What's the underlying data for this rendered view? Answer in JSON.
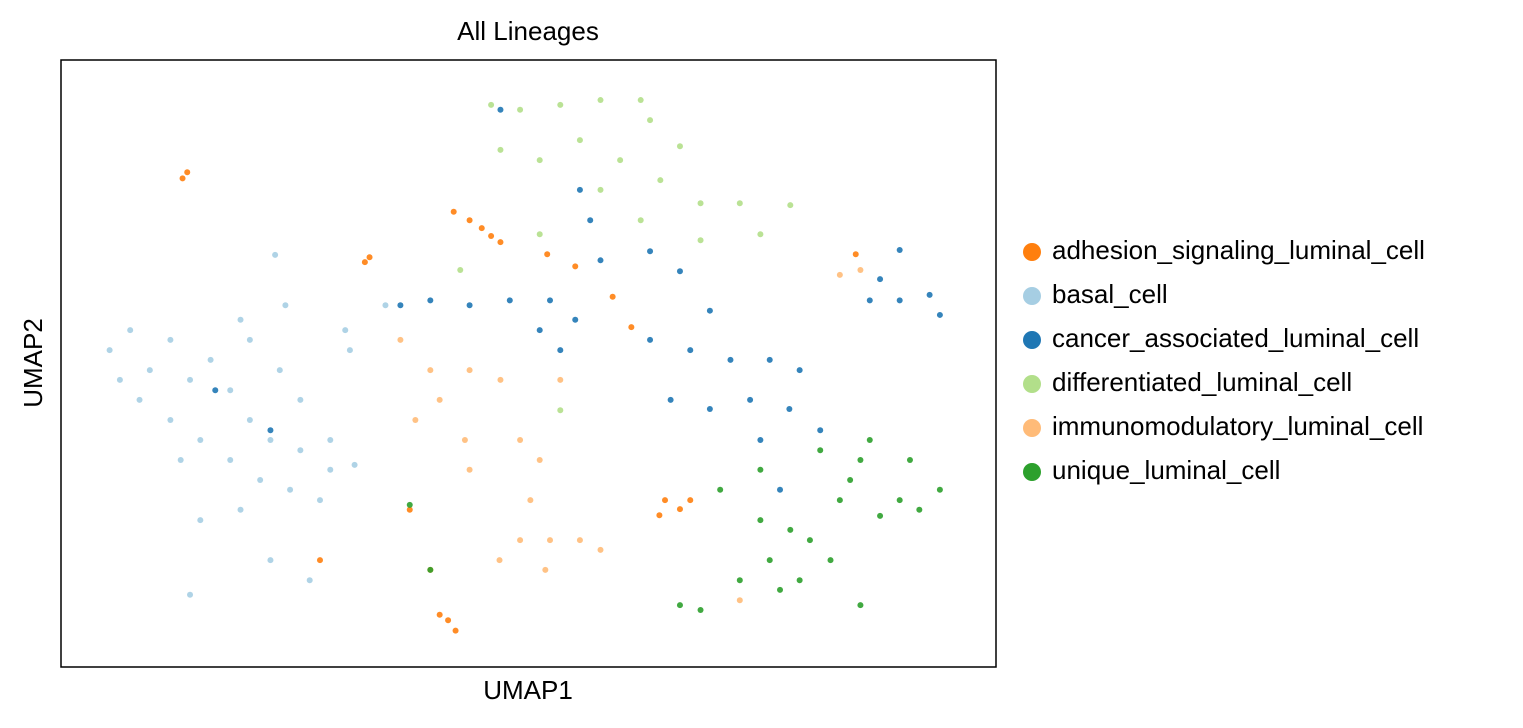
{
  "chart_data": {
    "type": "scatter",
    "title": "All Lineages",
    "xlabel": "UMAP1",
    "ylabel": "UMAP2",
    "xlim": [
      0,
      100
    ],
    "ylim": [
      0,
      100
    ],
    "legend": "right",
    "series": [
      {
        "name": "adhesion_signaling_luminal_cell",
        "color": "#ff7f0e",
        "x": [
          13.5,
          13,
          33,
          32.5,
          42,
          43.7,
          46,
          47,
          45,
          52,
          55,
          59,
          61,
          64.6,
          66.2,
          64,
          67.3,
          41.4,
          42.2,
          40.5,
          37.3,
          39.5,
          85,
          27.7
        ],
        "y": [
          81.5,
          80.5,
          67.5,
          66.7,
          75,
          73.6,
          71,
          70,
          72.3,
          68,
          66,
          61,
          56,
          27.5,
          26,
          25,
          27.5,
          7.7,
          6,
          8.6,
          25.9,
          16,
          68,
          17.6
        ]
      },
      {
        "name": "basal_cell",
        "color": "#a6cee3",
        "x": [
          5.2,
          7.4,
          9.5,
          11.7,
          13.8,
          16,
          18.1,
          20.2,
          22.4,
          25.6,
          28.8,
          31.4,
          8.4,
          11.7,
          14.9,
          18.1,
          21.3,
          24.5,
          27.7,
          20.2,
          23.4,
          25.6,
          19.2,
          22.9,
          24,
          30.4,
          34.7,
          30.9,
          14.9,
          19.2,
          13.8,
          22.4,
          26.6,
          6.3,
          12.8,
          28.8
        ],
        "y": [
          52.2,
          55.5,
          48.9,
          53.9,
          47.3,
          50.6,
          45.6,
          40.7,
          37.4,
          35.7,
          37.4,
          33.3,
          44,
          40.7,
          37.4,
          34.1,
          30.8,
          29.2,
          27.5,
          53.9,
          48.9,
          44,
          57.2,
          67.9,
          59.6,
          55.5,
          59.6,
          52.2,
          24.2,
          25.9,
          11.9,
          17.6,
          14.3,
          47.3,
          34.1,
          32.5
        ]
      },
      {
        "name": "cancer_associated_luminal_cell",
        "color": "#1f77b4",
        "x": [
          36.3,
          39.5,
          43.7,
          48,
          52.3,
          51.2,
          53.4,
          55,
          55.5,
          56.6,
          57.7,
          63,
          66.2,
          63,
          67.3,
          71.6,
          75.8,
          79,
          65.2,
          69.4,
          73.7,
          77.9,
          81.2,
          74.8,
          69.4,
          76.9,
          89.7,
          87.6,
          89.7,
          92.9,
          86.5,
          94,
          16.5,
          22.4,
          47
        ],
        "y": [
          59.6,
          60.4,
          59.6,
          60.4,
          60.4,
          55.5,
          52.2,
          57.2,
          78.6,
          73.6,
          67,
          68.5,
          65.2,
          53.9,
          52.2,
          50.6,
          50.6,
          48.9,
          44,
          42.5,
          44,
          42.5,
          39,
          37.4,
          58.7,
          29.2,
          68.7,
          63.9,
          60.4,
          61.3,
          60.4,
          58,
          45.6,
          39,
          91.8
        ]
      },
      {
        "name": "differentiated_luminal_cell",
        "color": "#b2df8a",
        "x": [
          46,
          49.1,
          53.4,
          57.7,
          62,
          63,
          47,
          51.2,
          55.5,
          59.8,
          64.1,
          57.7,
          62,
          68.4,
          72.6,
          74.8,
          78,
          68.4,
          51.2,
          42.7,
          53.4,
          66.2
        ],
        "y": [
          92.6,
          91.8,
          92.6,
          93.4,
          93.4,
          90.1,
          85.2,
          83.5,
          86.8,
          83.5,
          80.2,
          78.6,
          73.6,
          76.4,
          76.4,
          71.3,
          76.1,
          70.3,
          71.3,
          65.4,
          42.3,
          85.8
        ]
      },
      {
        "name": "immunomodulatory_luminal_cell",
        "color": "#ffbb78",
        "x": [
          36.3,
          39.5,
          43.7,
          47,
          40.5,
          43.2,
          43.7,
          49.1,
          51.2,
          50.2,
          49.1,
          52.3,
          55.5,
          57.7,
          51.8,
          46.9,
          53.4,
          37.9,
          85.5,
          83.3,
          72.6
        ],
        "y": [
          53.9,
          48.9,
          48.9,
          47.3,
          44,
          37.4,
          32.5,
          37.4,
          34.1,
          27.5,
          20.9,
          20.9,
          20.9,
          19.3,
          16,
          17.6,
          47.3,
          40.7,
          65.4,
          64.6,
          11
        ]
      },
      {
        "name": "unique_luminal_cell",
        "color": "#2ca02c",
        "x": [
          37.3,
          39.5,
          66.2,
          68.4,
          74.8,
          78,
          80.1,
          75.8,
          72.6,
          76.9,
          79,
          83.3,
          85.5,
          86.5,
          84.4,
          89.7,
          91.8,
          94,
          90.8,
          85.5,
          81.2,
          70.5,
          74.8,
          87.6,
          82.3
        ],
        "y": [
          26.7,
          16,
          10.2,
          9.4,
          24.2,
          22.6,
          20.9,
          17.6,
          14.3,
          12.7,
          14.3,
          27.5,
          34.1,
          37.4,
          30.8,
          27.5,
          25.9,
          29.2,
          34.1,
          10.2,
          35.7,
          29.2,
          32.5,
          24.9,
          17.6
        ]
      }
    ]
  }
}
